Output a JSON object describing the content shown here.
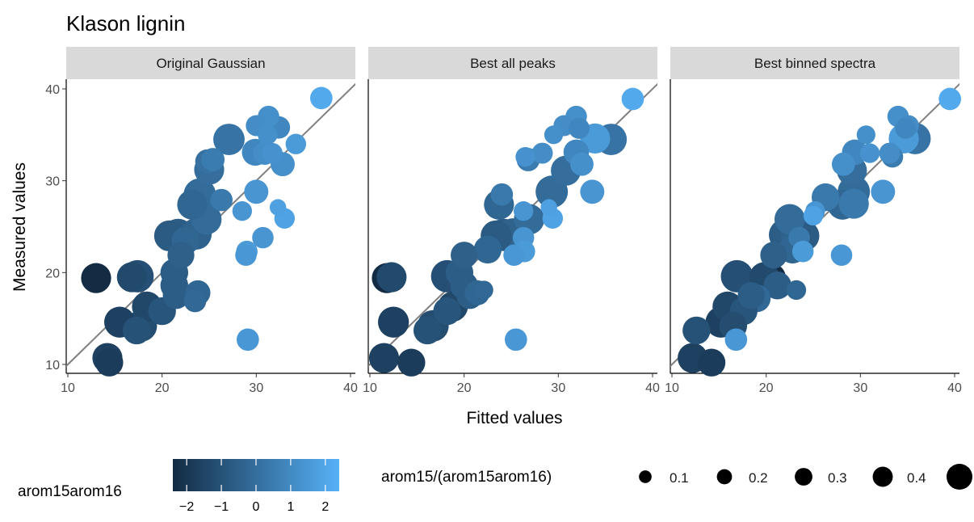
{
  "title": "Klason lignin",
  "xlabel": "Fitted values",
  "ylabel": "Measured values",
  "color_legend": {
    "title": "arom15arom16",
    "ticks": [
      "−2",
      "−1",
      "0",
      "1",
      "2"
    ],
    "tick_values": [
      -2,
      -1,
      0,
      1,
      2
    ],
    "range": [
      -2.4,
      2.4
    ],
    "low_color": "#132B43",
    "high_color": "#56B1F7"
  },
  "size_legend": {
    "title": "arom15/(arom15arom16)",
    "labels": [
      "0.1",
      "0.2",
      "0.3",
      "0.4"
    ],
    "values": [
      0.1,
      0.2,
      0.3,
      0.4
    ]
  },
  "chart_data": {
    "type": "scatter",
    "xlim": [
      10,
      40
    ],
    "ylim": [
      10,
      40
    ],
    "xticks": [
      "10",
      "20",
      "30",
      "40"
    ],
    "yticks": [
      "10",
      "20",
      "30",
      "40"
    ],
    "reference_line": "y = x",
    "grid": false,
    "panels": [
      {
        "name": "Original Gaussian",
        "points": [
          {
            "x": 36.9,
            "y": 39.0,
            "c": 2.1,
            "s": 0.28
          },
          {
            "x": 31.3,
            "y": 37.0,
            "c": 1.2,
            "s": 0.26
          },
          {
            "x": 30.0,
            "y": 36.0,
            "c": 1.1,
            "s": 0.25
          },
          {
            "x": 32.4,
            "y": 35.8,
            "c": 0.9,
            "s": 0.28
          },
          {
            "x": 31.2,
            "y": 35.0,
            "c": 1.2,
            "s": 0.22
          },
          {
            "x": 27.1,
            "y": 34.5,
            "c": 0.2,
            "s": 0.48
          },
          {
            "x": 34.2,
            "y": 34.0,
            "c": 1.6,
            "s": 0.24
          },
          {
            "x": 29.9,
            "y": 33.1,
            "c": 0.9,
            "s": 0.38
          },
          {
            "x": 30.9,
            "y": 33.0,
            "c": 1.1,
            "s": 0.3
          },
          {
            "x": 31.7,
            "y": 33.0,
            "c": 1.3,
            "s": 0.24
          },
          {
            "x": 25.4,
            "y": 32.3,
            "c": 0.5,
            "s": 0.3
          },
          {
            "x": 24.8,
            "y": 32.1,
            "c": 0.1,
            "s": 0.32
          },
          {
            "x": 25.0,
            "y": 31.2,
            "c": 0.0,
            "s": 0.45
          },
          {
            "x": 32.8,
            "y": 31.8,
            "c": 1.2,
            "s": 0.32
          },
          {
            "x": 30.0,
            "y": 28.8,
            "c": 1.4,
            "s": 0.32
          },
          {
            "x": 24.0,
            "y": 28.5,
            "c": -0.1,
            "s": 0.5
          },
          {
            "x": 26.3,
            "y": 27.9,
            "c": 0.4,
            "s": 0.28
          },
          {
            "x": 23.2,
            "y": 27.4,
            "c": -0.3,
            "s": 0.45
          },
          {
            "x": 32.3,
            "y": 27.1,
            "c": 1.8,
            "s": 0.15
          },
          {
            "x": 28.5,
            "y": 26.7,
            "c": 1.4,
            "s": 0.22
          },
          {
            "x": 33.0,
            "y": 25.9,
            "c": 1.9,
            "s": 0.24
          },
          {
            "x": 24.7,
            "y": 25.8,
            "c": -0.1,
            "s": 0.46
          },
          {
            "x": 23.6,
            "y": 24.2,
            "c": -0.4,
            "s": 0.48
          },
          {
            "x": 21.7,
            "y": 24.1,
            "c": -0.6,
            "s": 0.5
          },
          {
            "x": 20.8,
            "y": 24.0,
            "c": -0.7,
            "s": 0.47
          },
          {
            "x": 30.7,
            "y": 23.8,
            "c": 1.4,
            "s": 0.26
          },
          {
            "x": 22.5,
            "y": 23.5,
            "c": -0.3,
            "s": 0.4
          },
          {
            "x": 29.0,
            "y": 22.3,
            "c": 1.6,
            "s": 0.26
          },
          {
            "x": 28.9,
            "y": 21.9,
            "c": 1.5,
            "s": 0.26
          },
          {
            "x": 22.0,
            "y": 21.9,
            "c": -0.5,
            "s": 0.38
          },
          {
            "x": 21.3,
            "y": 20.0,
            "c": -0.6,
            "s": 0.4
          },
          {
            "x": 13.0,
            "y": 19.4,
            "c": -2.4,
            "s": 0.45
          },
          {
            "x": 16.8,
            "y": 19.5,
            "c": -1.3,
            "s": 0.45
          },
          {
            "x": 17.4,
            "y": 19.6,
            "c": -1.1,
            "s": 0.5
          },
          {
            "x": 21.3,
            "y": 18.6,
            "c": -0.6,
            "s": 0.4
          },
          {
            "x": 23.8,
            "y": 17.8,
            "c": -0.3,
            "s": 0.34
          },
          {
            "x": 21.5,
            "y": 17.5,
            "c": -0.6,
            "s": 0.38
          },
          {
            "x": 23.5,
            "y": 16.9,
            "c": -0.2,
            "s": 0.28
          },
          {
            "x": 18.4,
            "y": 16.3,
            "c": -1.4,
            "s": 0.45
          },
          {
            "x": 20.0,
            "y": 15.8,
            "c": -0.9,
            "s": 0.4
          },
          {
            "x": 15.5,
            "y": 14.6,
            "c": -1.6,
            "s": 0.47
          },
          {
            "x": 17.8,
            "y": 14.2,
            "c": -1.2,
            "s": 0.48
          },
          {
            "x": 17.3,
            "y": 13.7,
            "c": -1.0,
            "s": 0.4
          },
          {
            "x": 29.1,
            "y": 12.7,
            "c": 1.5,
            "s": 0.28
          },
          {
            "x": 14.2,
            "y": 10.7,
            "c": -1.6,
            "s": 0.45
          },
          {
            "x": 14.4,
            "y": 10.2,
            "c": -1.8,
            "s": 0.4
          }
        ]
      },
      {
        "name": "Best all peaks",
        "points": [
          {
            "x": 37.9,
            "y": 38.9,
            "c": 2.1,
            "s": 0.28
          },
          {
            "x": 31.9,
            "y": 37.0,
            "c": 1.2,
            "s": 0.26
          },
          {
            "x": 30.6,
            "y": 36.0,
            "c": 1.1,
            "s": 0.25
          },
          {
            "x": 32.2,
            "y": 35.7,
            "c": 0.9,
            "s": 0.25
          },
          {
            "x": 29.5,
            "y": 35.0,
            "c": 1.2,
            "s": 0.2
          },
          {
            "x": 35.6,
            "y": 34.5,
            "c": 0.2,
            "s": 0.48
          },
          {
            "x": 33.9,
            "y": 34.6,
            "c": 1.6,
            "s": 0.45
          },
          {
            "x": 31.9,
            "y": 33.1,
            "c": 0.9,
            "s": 0.35
          },
          {
            "x": 28.3,
            "y": 33.0,
            "c": 1.1,
            "s": 0.25
          },
          {
            "x": 26.5,
            "y": 32.6,
            "c": 1.3,
            "s": 0.22
          },
          {
            "x": 26.8,
            "y": 32.3,
            "c": 0.5,
            "s": 0.3
          },
          {
            "x": 30.8,
            "y": 31.1,
            "c": 0.0,
            "s": 0.45
          },
          {
            "x": 32.5,
            "y": 31.8,
            "c": 1.2,
            "s": 0.3
          },
          {
            "x": 33.6,
            "y": 28.8,
            "c": 1.4,
            "s": 0.32
          },
          {
            "x": 29.3,
            "y": 28.8,
            "c": -0.1,
            "s": 0.5
          },
          {
            "x": 24.0,
            "y": 28.5,
            "c": 0.4,
            "s": 0.28
          },
          {
            "x": 23.7,
            "y": 27.4,
            "c": -0.3,
            "s": 0.45
          },
          {
            "x": 29.0,
            "y": 27.1,
            "c": 1.8,
            "s": 0.15
          },
          {
            "x": 26.3,
            "y": 26.7,
            "c": 1.4,
            "s": 0.22
          },
          {
            "x": 29.4,
            "y": 25.9,
            "c": 1.9,
            "s": 0.24
          },
          {
            "x": 26.9,
            "y": 25.8,
            "c": -0.1,
            "s": 0.46
          },
          {
            "x": 25.2,
            "y": 24.2,
            "c": -0.4,
            "s": 0.48
          },
          {
            "x": 24.2,
            "y": 24.1,
            "c": -0.6,
            "s": 0.5
          },
          {
            "x": 23.4,
            "y": 24.0,
            "c": -0.7,
            "s": 0.47
          },
          {
            "x": 26.3,
            "y": 23.8,
            "c": 1.4,
            "s": 0.26
          },
          {
            "x": 22.5,
            "y": 22.5,
            "c": -0.3,
            "s": 0.4
          },
          {
            "x": 26.4,
            "y": 22.3,
            "c": 1.6,
            "s": 0.26
          },
          {
            "x": 25.3,
            "y": 21.9,
            "c": 1.5,
            "s": 0.26
          },
          {
            "x": 20.0,
            "y": 21.9,
            "c": -0.5,
            "s": 0.38
          },
          {
            "x": 19.5,
            "y": 20.0,
            "c": -0.6,
            "s": 0.4
          },
          {
            "x": 11.8,
            "y": 19.4,
            "c": -2.4,
            "s": 0.45
          },
          {
            "x": 12.3,
            "y": 19.5,
            "c": -1.3,
            "s": 0.45
          },
          {
            "x": 18.2,
            "y": 19.6,
            "c": -1.1,
            "s": 0.5
          },
          {
            "x": 20.0,
            "y": 18.6,
            "c": -0.6,
            "s": 0.4
          },
          {
            "x": 21.4,
            "y": 17.8,
            "c": -0.3,
            "s": 0.34
          },
          {
            "x": 20.6,
            "y": 17.5,
            "c": -0.6,
            "s": 0.38
          },
          {
            "x": 22.1,
            "y": 18.1,
            "c": -0.2,
            "s": 0.2
          },
          {
            "x": 18.8,
            "y": 16.3,
            "c": -1.4,
            "s": 0.45
          },
          {
            "x": 18.2,
            "y": 15.8,
            "c": -0.9,
            "s": 0.4
          },
          {
            "x": 12.5,
            "y": 14.6,
            "c": -1.6,
            "s": 0.47
          },
          {
            "x": 16.7,
            "y": 14.2,
            "c": -1.2,
            "s": 0.48
          },
          {
            "x": 16.1,
            "y": 13.7,
            "c": -1.0,
            "s": 0.4
          },
          {
            "x": 25.5,
            "y": 12.7,
            "c": 1.5,
            "s": 0.28
          },
          {
            "x": 11.5,
            "y": 10.7,
            "c": -1.6,
            "s": 0.45
          },
          {
            "x": 14.4,
            "y": 10.2,
            "c": -1.8,
            "s": 0.4
          }
        ]
      },
      {
        "name": "Best binned spectra",
        "points": [
          {
            "x": 39.5,
            "y": 38.9,
            "c": 2.1,
            "s": 0.28
          },
          {
            "x": 34.0,
            "y": 37.0,
            "c": 1.2,
            "s": 0.26
          },
          {
            "x": 35.1,
            "y": 36.0,
            "c": 1.1,
            "s": 0.25
          },
          {
            "x": 34.8,
            "y": 35.7,
            "c": 0.9,
            "s": 0.25
          },
          {
            "x": 30.6,
            "y": 35.0,
            "c": 1.2,
            "s": 0.2
          },
          {
            "x": 35.8,
            "y": 34.6,
            "c": 0.2,
            "s": 0.48
          },
          {
            "x": 34.6,
            "y": 34.6,
            "c": 1.6,
            "s": 0.45
          },
          {
            "x": 29.4,
            "y": 33.1,
            "c": 0.9,
            "s": 0.35
          },
          {
            "x": 33.1,
            "y": 33.0,
            "c": 1.1,
            "s": 0.25
          },
          {
            "x": 31.0,
            "y": 33.0,
            "c": 1.3,
            "s": 0.22
          },
          {
            "x": 33.4,
            "y": 32.6,
            "c": 0.5,
            "s": 0.26
          },
          {
            "x": 29.1,
            "y": 31.1,
            "c": 0.0,
            "s": 0.45
          },
          {
            "x": 28.2,
            "y": 31.8,
            "c": 1.2,
            "s": 0.3
          },
          {
            "x": 32.4,
            "y": 28.8,
            "c": 1.4,
            "s": 0.32
          },
          {
            "x": 29.3,
            "y": 28.8,
            "c": -0.1,
            "s": 0.5
          },
          {
            "x": 26.3,
            "y": 28.2,
            "c": 0.4,
            "s": 0.4
          },
          {
            "x": 28.1,
            "y": 27.4,
            "c": -0.3,
            "s": 0.45
          },
          {
            "x": 29.3,
            "y": 27.5,
            "c": 0.4,
            "s": 0.45
          },
          {
            "x": 25.2,
            "y": 26.7,
            "c": 1.4,
            "s": 0.22
          },
          {
            "x": 25.0,
            "y": 26.2,
            "c": 1.9,
            "s": 0.22
          },
          {
            "x": 22.5,
            "y": 25.8,
            "c": -0.1,
            "s": 0.46
          },
          {
            "x": 23.2,
            "y": 24.2,
            "c": -0.4,
            "s": 0.48
          },
          {
            "x": 22.0,
            "y": 24.1,
            "c": -0.6,
            "s": 0.5
          },
          {
            "x": 24.0,
            "y": 24.0,
            "c": -0.7,
            "s": 0.47
          },
          {
            "x": 23.5,
            "y": 23.8,
            "c": 0.4,
            "s": 0.26
          },
          {
            "x": 22.8,
            "y": 22.5,
            "c": -0.3,
            "s": 0.4
          },
          {
            "x": 23.9,
            "y": 22.3,
            "c": 1.6,
            "s": 0.26
          },
          {
            "x": 28.0,
            "y": 21.9,
            "c": 1.5,
            "s": 0.26
          },
          {
            "x": 20.8,
            "y": 21.9,
            "c": -0.5,
            "s": 0.38
          },
          {
            "x": 20.5,
            "y": 19.4,
            "c": -2.4,
            "s": 0.45
          },
          {
            "x": 19.8,
            "y": 19.5,
            "c": -1.3,
            "s": 0.45
          },
          {
            "x": 16.9,
            "y": 19.6,
            "c": -1.1,
            "s": 0.5
          },
          {
            "x": 21.2,
            "y": 18.6,
            "c": -0.6,
            "s": 0.4
          },
          {
            "x": 23.2,
            "y": 18.1,
            "c": -0.3,
            "s": 0.22
          },
          {
            "x": 18.4,
            "y": 17.5,
            "c": -0.6,
            "s": 0.38
          },
          {
            "x": 19.0,
            "y": 17.2,
            "c": -0.2,
            "s": 0.4
          },
          {
            "x": 15.9,
            "y": 16.3,
            "c": -1.4,
            "s": 0.45
          },
          {
            "x": 17.6,
            "y": 15.8,
            "c": -0.9,
            "s": 0.4
          },
          {
            "x": 15.2,
            "y": 14.6,
            "c": -1.6,
            "s": 0.47
          },
          {
            "x": 16.5,
            "y": 14.2,
            "c": -1.2,
            "s": 0.4
          },
          {
            "x": 12.6,
            "y": 13.7,
            "c": -1.0,
            "s": 0.4
          },
          {
            "x": 16.8,
            "y": 12.7,
            "c": 1.5,
            "s": 0.28
          },
          {
            "x": 12.2,
            "y": 10.7,
            "c": -1.6,
            "s": 0.45
          },
          {
            "x": 14.2,
            "y": 10.2,
            "c": -1.8,
            "s": 0.4
          }
        ]
      }
    ]
  }
}
